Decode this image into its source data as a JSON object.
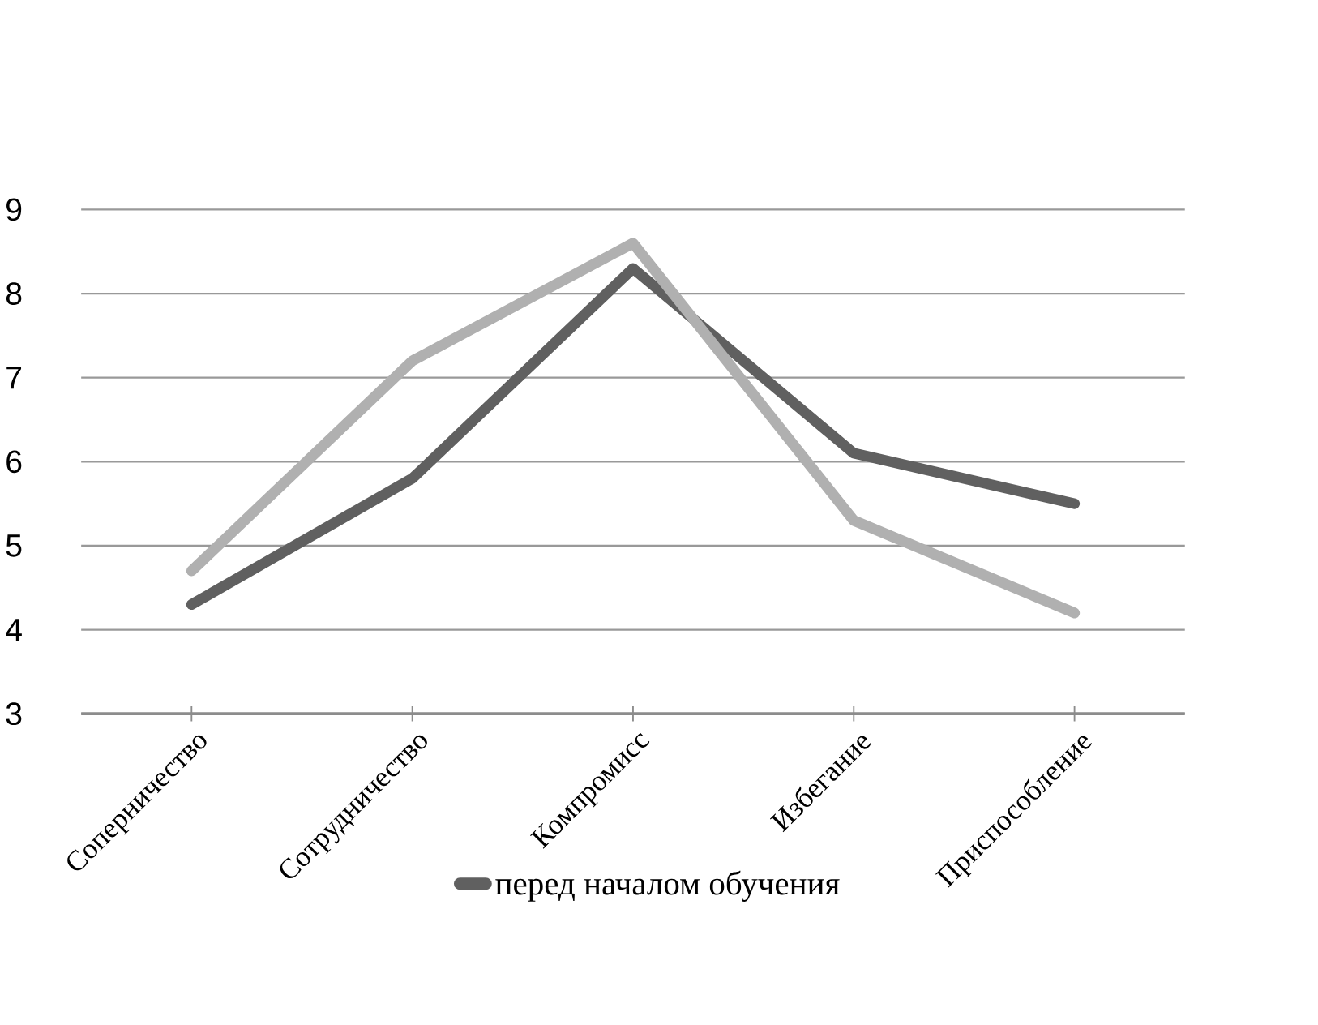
{
  "chart_data": {
    "type": "line",
    "categories": [
      "Соперничество",
      "Сотрудничество",
      "Компромисс",
      "Избегание",
      "Приспособление"
    ],
    "series": [
      {
        "name": "перед началом обучения",
        "color": "#606060",
        "values": [
          4.3,
          5.8,
          8.3,
          6.1,
          5.5
        ]
      },
      {
        "color": "#b0b0b0",
        "values": [
          4.7,
          7.2,
          8.6,
          5.3,
          4.2
        ]
      }
    ],
    "ylim": [
      3,
      9
    ],
    "yticks": [
      3,
      4,
      5,
      6,
      7,
      8,
      9
    ],
    "grid": "y",
    "legend": "bottom",
    "marker": "none",
    "line_style": "solid"
  }
}
